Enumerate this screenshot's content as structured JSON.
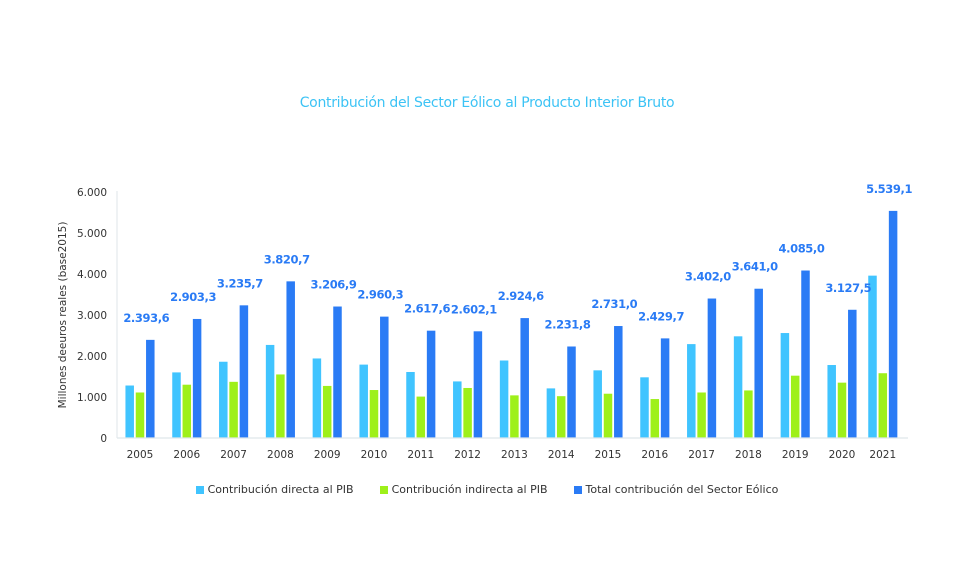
{
  "chart_data": {
    "type": "bar",
    "title": "Contribución del Sector Eólico al Producto Interior Bruto",
    "xlabel": "",
    "ylabel": "Millones deeuros reales (base2015)",
    "ylim": [
      0,
      6000
    ],
    "yticks": [
      0,
      1000,
      2000,
      3000,
      4000,
      5000,
      6000
    ],
    "ytick_labels": [
      "0",
      "1.000",
      "2.000",
      "3.000",
      "4.000",
      "5.000",
      "6.000"
    ],
    "grid": false,
    "legend_position": "bottom",
    "categories": [
      "2005",
      "2006",
      "2007",
      "2008",
      "2009",
      "2010",
      "2011",
      "2012",
      "2013",
      "2014",
      "2015",
      "2016",
      "2017",
      "2018",
      "2019",
      "2020",
      "2021"
    ],
    "series": [
      {
        "name": "Contribución directa al PIB",
        "color": "#40c4ff",
        "values": [
          1280,
          1600,
          1860,
          2270,
          1940,
          1790,
          1610,
          1380,
          1890,
          1210,
          1650,
          1480,
          2290,
          2480,
          2560,
          1780,
          3960
        ]
      },
      {
        "name": "Contribución indirecta al PIB",
        "color": "#9ef01a",
        "values": [
          1110,
          1300,
          1370,
          1550,
          1270,
          1170,
          1010,
          1220,
          1040,
          1020,
          1080,
          950,
          1110,
          1160,
          1520,
          1350,
          1580
        ]
      },
      {
        "name": "Total contribución del Sector Eólico",
        "color": "#2a7bf5",
        "values": [
          2393.6,
          2903.3,
          3235.7,
          3820.7,
          3206.9,
          2960.3,
          2617.6,
          2602.1,
          2924.6,
          2231.8,
          2731.0,
          2429.7,
          3402.0,
          3641.0,
          4085.0,
          3127.5,
          5539.1
        ],
        "data_labels": [
          "2.393,6",
          "2.903,3",
          "3.235,7",
          "3.820,7",
          "3.206,9",
          "2.960,3",
          "2.617,6",
          "2.602,1",
          "2.924,6",
          "2.231,8",
          "2.731,0",
          "2.429,7",
          "3.402,0",
          "3.641,0",
          "4.085,0",
          "3.127,5",
          "5.539,1"
        ]
      }
    ]
  }
}
